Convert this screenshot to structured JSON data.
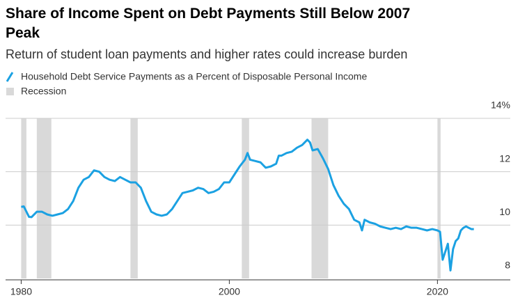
{
  "chart_data": {
    "type": "line",
    "title": "Share of Income Spent on Debt Payments Still Below 2007 Peak",
    "subtitle": "Return of student loan payments and higher rates could increase burden",
    "x": [
      1980,
      1980.25,
      1980.75,
      1981,
      1981.5,
      1982,
      1982.5,
      1983,
      1983.5,
      1984,
      1984.5,
      1985,
      1985.5,
      1986,
      1986.5,
      1987,
      1987.5,
      1988,
      1988.5,
      1989,
      1989.5,
      1990,
      1990.5,
      1991,
      1991.5,
      1992,
      1992.5,
      1993,
      1993.5,
      1994,
      1994.5,
      1995,
      1995.5,
      1996,
      1996.5,
      1997,
      1997.5,
      1998,
      1998.5,
      1999,
      1999.5,
      2000,
      2000.5,
      2001,
      2001.5,
      2001.75,
      2002,
      2002.5,
      2003,
      2003.5,
      2004,
      2004.5,
      2004.75,
      2005,
      2005.5,
      2006,
      2006.5,
      2007,
      2007.5,
      2007.75,
      2008,
      2008.5,
      2009,
      2009.5,
      2010,
      2010.5,
      2011,
      2011.5,
      2012,
      2012.5,
      2012.75,
      2013,
      2013.5,
      2014,
      2014.5,
      2015,
      2015.5,
      2016,
      2016.5,
      2017,
      2017.5,
      2018,
      2018.5,
      2019,
      2019.5,
      2020,
      2020.25,
      2020.5,
      2020.75,
      2021,
      2021.25,
      2021.5,
      2021.75,
      2022,
      2022.25,
      2022.5,
      2022.75,
      2023,
      2023.25,
      2023.5
    ],
    "series": [
      {
        "name": "Household Debt Service Payments as a Percent of Disposable Personal Income",
        "color": "#1ba1e2",
        "values": [
          10.68,
          10.7,
          10.31,
          10.3,
          10.5,
          10.5,
          10.4,
          10.35,
          10.4,
          10.45,
          10.6,
          10.9,
          11.4,
          11.7,
          11.8,
          12.05,
          12.0,
          11.8,
          11.7,
          11.65,
          11.8,
          11.7,
          11.6,
          11.6,
          11.4,
          10.9,
          10.5,
          10.4,
          10.35,
          10.4,
          10.6,
          10.9,
          11.2,
          11.25,
          11.3,
          11.4,
          11.35,
          11.2,
          11.25,
          11.35,
          11.6,
          11.6,
          11.9,
          12.2,
          12.45,
          12.7,
          12.45,
          12.4,
          12.35,
          12.15,
          12.2,
          12.3,
          12.6,
          12.6,
          12.7,
          12.75,
          12.9,
          13.0,
          13.2,
          13.1,
          12.8,
          12.85,
          12.5,
          12.1,
          11.5,
          11.1,
          10.8,
          10.6,
          10.2,
          10.1,
          9.8,
          10.2,
          10.1,
          10.05,
          9.95,
          9.9,
          9.85,
          9.9,
          9.85,
          9.95,
          9.9,
          9.9,
          9.85,
          9.8,
          9.85,
          9.8,
          9.75,
          8.7,
          9.0,
          9.3,
          8.3,
          9.1,
          9.4,
          9.5,
          9.8,
          9.9,
          9.95,
          9.9,
          9.85,
          9.85
        ]
      }
    ],
    "recessions": {
      "name": "Recession",
      "color": "#d9d9d9",
      "periods": [
        [
          1980,
          1980.5
        ],
        [
          1981.5,
          1982.9
        ],
        [
          1990.5,
          1991.2
        ],
        [
          2001.2,
          2001.9
        ],
        [
          2007.9,
          2009.5
        ],
        [
          2020,
          2020.3
        ]
      ]
    },
    "xlim": [
      1978.5,
      2027
    ],
    "xticks": [
      1980,
      2000,
      2020
    ],
    "ylim": [
      8,
      14
    ],
    "yticks": [
      {
        "value": 14,
        "label": "14%"
      },
      12,
      10,
      8
    ],
    "grid": true
  }
}
